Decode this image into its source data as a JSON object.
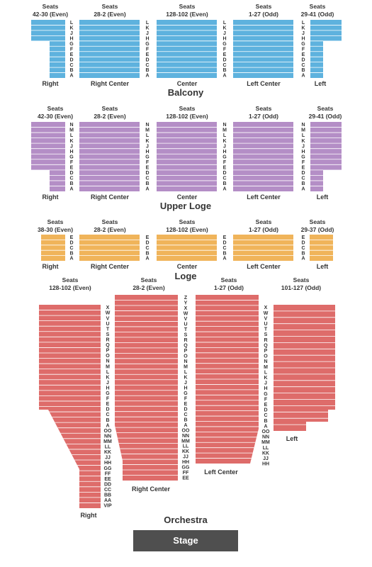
{
  "levels": {
    "balcony": "Balcony",
    "upper_loge": "Upper Loge",
    "loge": "Loge",
    "orchestra": "Orchestra"
  },
  "stage": "Stage",
  "colors": {
    "balcony": "#5eb2de",
    "upper_loge": "#b48ec6",
    "loge": "#f0b45a",
    "orchestra": "#de6c6a",
    "stage": "#4f4f4f",
    "divider": "#ffffff"
  },
  "seats_word": "Seats",
  "balcony": {
    "headers": [
      "42-30 (Even)",
      "28-2 (Even)",
      "128-102 (Even)",
      "1-27 (Odd)",
      "29-41 (Odd)"
    ],
    "sections": [
      "Right",
      "Right Center",
      "Center",
      "Left Center",
      "Left"
    ],
    "rows": [
      "L",
      "K",
      "J",
      "H",
      "G",
      "F",
      "E",
      "D",
      "C",
      "B",
      "A"
    ]
  },
  "upper_loge": {
    "headers": [
      "42-30 (Even)",
      "28-2 (Even)",
      "128-102 (Even)",
      "1-27 (Odd)",
      "29-41 (Odd)"
    ],
    "sections": [
      "Right",
      "Right Center",
      "Center",
      "Left Center",
      "Left"
    ],
    "rows": [
      "N",
      "M",
      "L",
      "K",
      "J",
      "H",
      "G",
      "F",
      "E",
      "D",
      "C",
      "B",
      "A"
    ]
  },
  "loge": {
    "headers": [
      "38-30 (Even)",
      "28-2 (Even)",
      "128-102 (Even)",
      "1-27 (Odd)",
      "29-37 (Odd)"
    ],
    "sections": [
      "Right",
      "Right Center",
      "Center",
      "Left Center",
      "Left"
    ],
    "rows": [
      "E",
      "D",
      "C",
      "B",
      "A"
    ]
  },
  "orchestra": {
    "headers": [
      "128-102 (Even)",
      "28-2 (Even)",
      "1-27 (Odd)",
      "101-127 (Odd)"
    ],
    "sections": [
      "Right",
      "Right Center",
      "Left Center",
      "Left"
    ],
    "rows_center": [
      "Z",
      "Y",
      "X",
      "W",
      "V",
      "U",
      "T",
      "S",
      "R",
      "Q",
      "P",
      "O",
      "N",
      "M",
      "L",
      "K",
      "J",
      "H",
      "G",
      "F",
      "E",
      "D",
      "C",
      "B",
      "A",
      "OO",
      "NN",
      "MM",
      "LL",
      "KK",
      "JJ",
      "HH",
      "GG",
      "FF",
      "EE"
    ],
    "rows_side": [
      "X",
      "W",
      "V",
      "U",
      "T",
      "S",
      "R",
      "Q",
      "P",
      "O",
      "N",
      "M",
      "L",
      "K",
      "J",
      "H",
      "G",
      "F",
      "E",
      "D",
      "C",
      "B",
      "A",
      "OO",
      "NN",
      "MM",
      "LL",
      "KK",
      "JJ",
      "HH"
    ],
    "rows_right_far": [
      "X",
      "W",
      "V",
      "U",
      "T",
      "S",
      "R",
      "Q",
      "P",
      "O",
      "N",
      "M",
      "L",
      "K",
      "J",
      "H",
      "G",
      "F",
      "E",
      "D",
      "C",
      "B",
      "A",
      "OO",
      "NN",
      "MM",
      "LL",
      "KK",
      "JJ",
      "HH",
      "GG",
      "FF",
      "EE",
      "DD",
      "CC",
      "BB",
      "AA",
      "VIP"
    ]
  }
}
